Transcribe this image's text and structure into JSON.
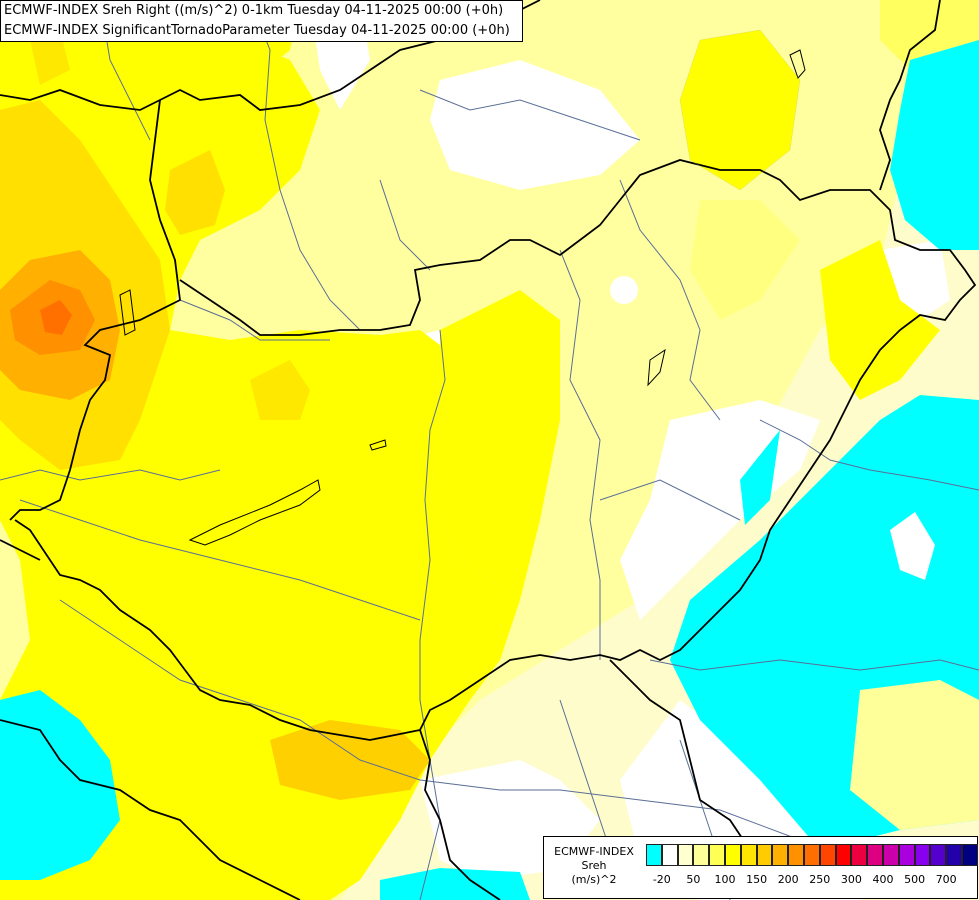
{
  "header": {
    "line1": "ECMWF-INDEX Sreh Right ((m/s)^2) 0-1km Tuesday 04-11-2025 00:00 (+0h)",
    "line2": "ECMWF-INDEX SignificantTornadoParameter Tuesday 04-11-2025 00:00 (+0h)"
  },
  "legend": {
    "source": "ECMWF-INDEX",
    "variable": "Sreh",
    "unit": "(m/s)^2",
    "colors": [
      "#00ffff",
      "#ffffff",
      "#ffffd0",
      "#ffff9a",
      "#ffff55",
      "#ffff00",
      "#ffe500",
      "#ffcc00",
      "#ffb000",
      "#ff9000",
      "#ff6e00",
      "#ff4500",
      "#ff0000",
      "#ee0040",
      "#dd0080",
      "#cc00aa",
      "#aa00dd",
      "#8800ee",
      "#5500cc",
      "#2200aa",
      "#000080"
    ],
    "ticks": [
      "-20",
      "50",
      "100",
      "150",
      "200",
      "250",
      "300",
      "400",
      "500",
      "700"
    ]
  },
  "colors": {
    "cyan": "#00ffff",
    "white": "#ffffff",
    "pale": "#fffccc",
    "light_yellow": "#ffff99",
    "yellow": "#ffff00",
    "gold": "#ffe000",
    "amber": "#ffc000",
    "orange": "#ff9a00",
    "dark_orange": "#ff7000"
  }
}
